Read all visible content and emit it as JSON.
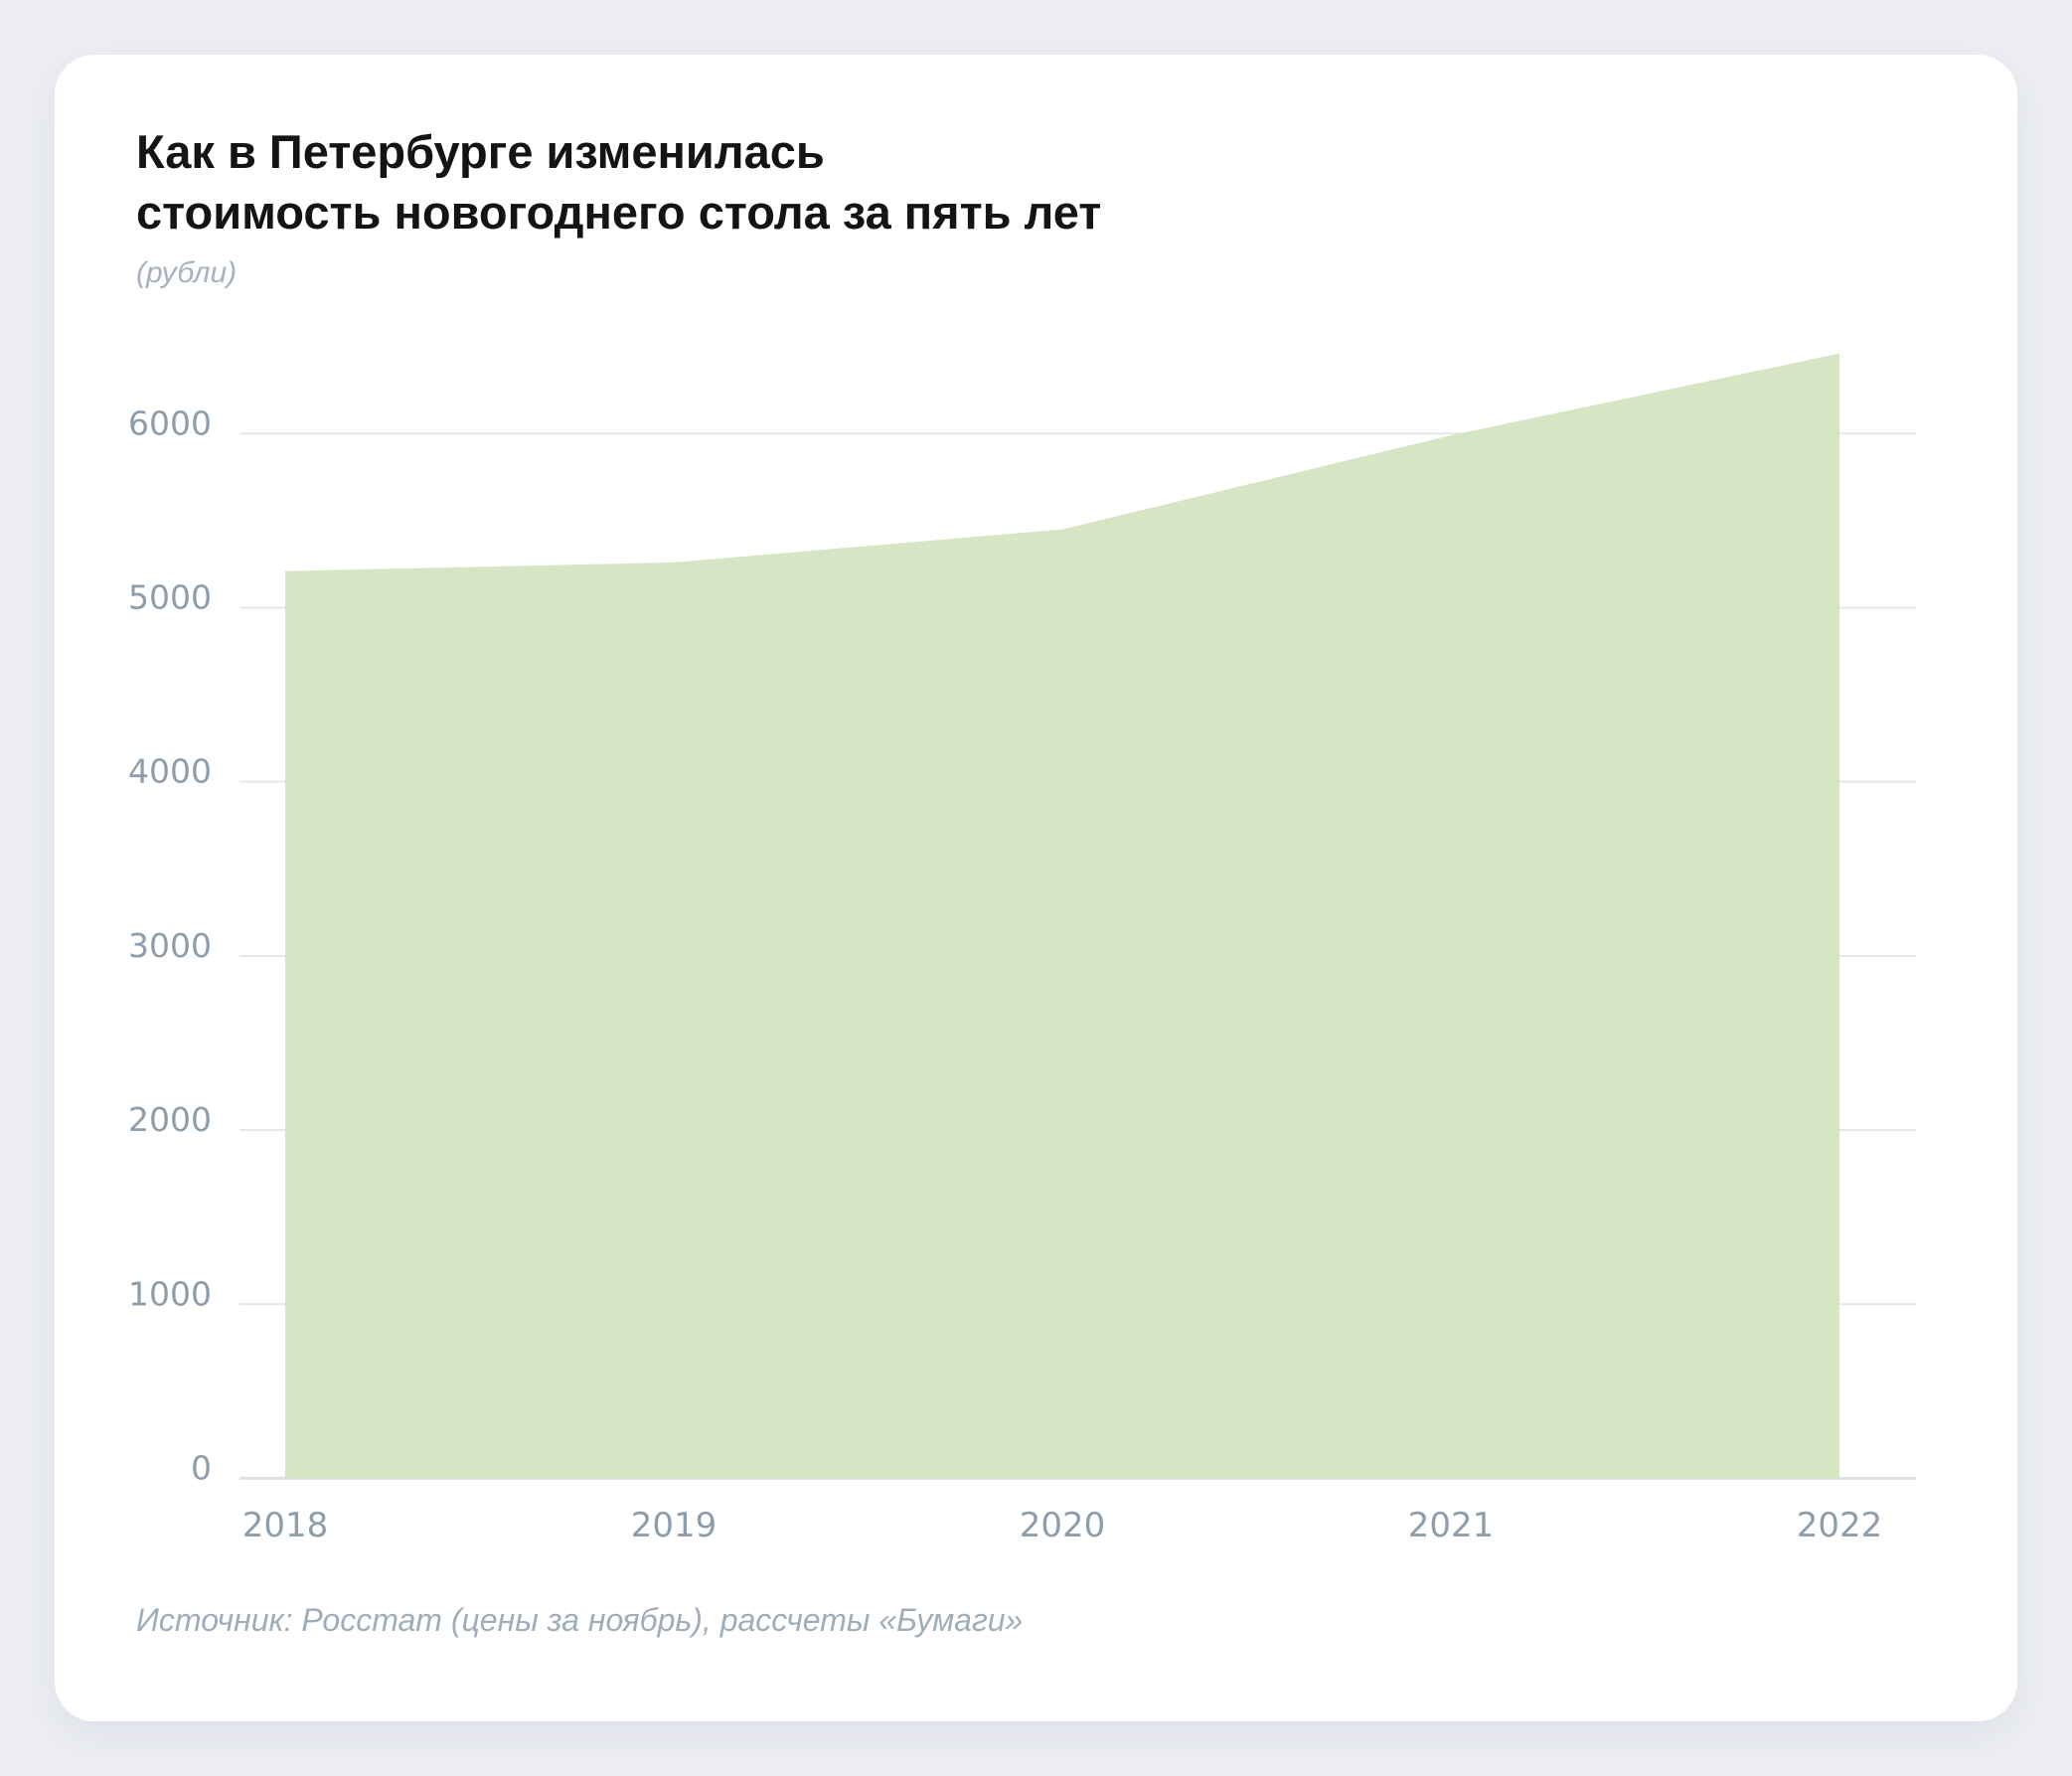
{
  "card": {
    "title_line1": "Как в Петербурге изменилась",
    "title_line2": "стоимость новогоднего стола за пять лет",
    "subtitle": "(рубли)",
    "source": "Источник: Росстат (цены за ноябрь), рассчеты «Бумаги»"
  },
  "colors": {
    "page_bg": "#eceef3",
    "card_bg": "#ffffff",
    "area_fill": "#cfe2ba",
    "grid_line": "#e3e7ec",
    "axis_line": "#dde2e9",
    "tick_text": "#8d9dac",
    "title_text": "#141414",
    "muted_text": "#a3b0be"
  },
  "chart_data": {
    "type": "area",
    "title": "Как в Петербурге изменилась стоимость новогоднего стола за пять лет",
    "unit_label": "(рубли)",
    "categories": [
      "2018",
      "2019",
      "2020",
      "2021",
      "2022"
    ],
    "values": [
      5210,
      5260,
      5450,
      5990,
      6460
    ],
    "xlabel": "",
    "ylabel": "рубли",
    "ylim": [
      0,
      6500
    ],
    "yticks": [
      0,
      1000,
      2000,
      3000,
      4000,
      5000,
      6000
    ],
    "grid": "horizontal",
    "legend": "none",
    "source": "Источник: Росстат (цены за ноябрь), рассчеты «Бумаги»"
  }
}
